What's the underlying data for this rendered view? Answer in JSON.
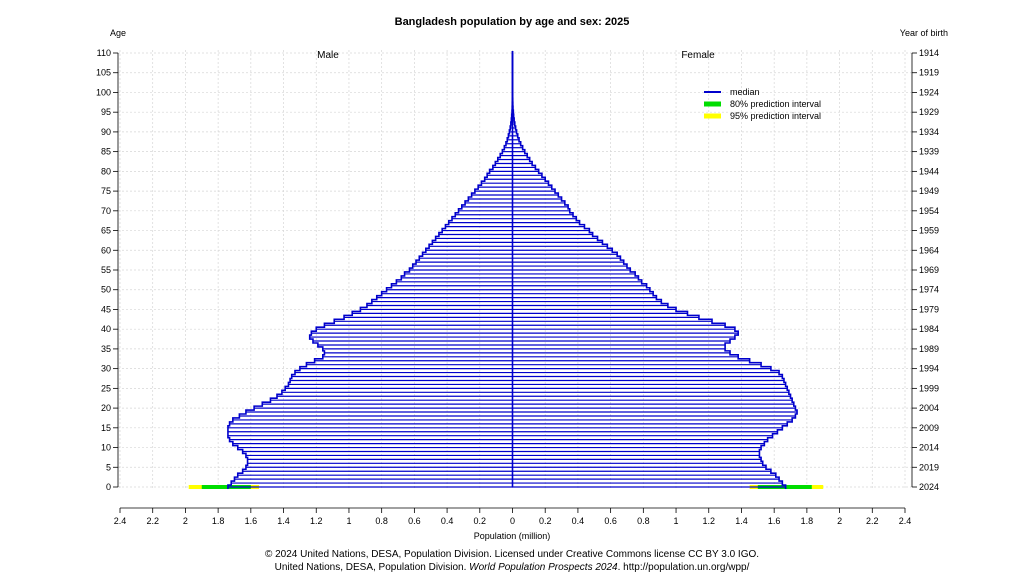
{
  "chart_data": {
    "type": "bar",
    "title": "Bangladesh population by age and sex: 2025",
    "left_axis_label": "Age",
    "right_axis_label": "Year of birth",
    "xlabel": "Population (million)",
    "male_label": "Male",
    "female_label": "Female",
    "x_tick_labels": [
      "2.4",
      "2.2",
      "2",
      "1.8",
      "1.6",
      "1.4",
      "1.2",
      "1",
      "0.8",
      "0.6",
      "0.4",
      "0.2",
      "0",
      "0.2",
      "0.4",
      "0.6",
      "0.8",
      "1",
      "1.2",
      "1.4",
      "1.6",
      "1.8",
      "2",
      "2.2",
      "2.4"
    ],
    "xlim": [
      -2.4,
      2.4
    ],
    "ylim": [
      0,
      110
    ],
    "age_ticks": [
      0,
      5,
      10,
      15,
      20,
      25,
      30,
      35,
      40,
      45,
      50,
      55,
      60,
      65,
      70,
      75,
      80,
      85,
      90,
      95,
      100,
      105,
      110
    ],
    "year_ticks": [
      "2024",
      "2019",
      "2014",
      "2009",
      "2004",
      "1999",
      "1994",
      "1989",
      "1984",
      "1979",
      "1974",
      "1969",
      "1964",
      "1959",
      "1954",
      "1949",
      "1944",
      "1939",
      "1934",
      "1929",
      "1924",
      "1919",
      "1914"
    ],
    "legend": {
      "placement": "top-right",
      "entries": [
        {
          "label": "median",
          "color": "#0000cc"
        },
        {
          "label": "80% prediction interval",
          "color": "#00dd00"
        },
        {
          "label": "95% prediction interval",
          "color": "#ffff00"
        }
      ]
    },
    "colors": {
      "median": "#0000cc",
      "pi80": "#00dd00",
      "pi95": "#ffff00",
      "grid": "#d6d6d6"
    },
    "grid": true,
    "age0_intervals": {
      "male": {
        "pi80": [
          1.6,
          1.9
        ],
        "pi95": [
          1.55,
          1.98
        ]
      },
      "female": {
        "pi80": [
          1.5,
          1.83
        ],
        "pi95": [
          1.45,
          1.9
        ]
      }
    },
    "series": [
      {
        "name": "Male",
        "values": [
          1.74,
          1.72,
          1.7,
          1.68,
          1.65,
          1.63,
          1.62,
          1.62,
          1.63,
          1.65,
          1.68,
          1.71,
          1.73,
          1.74,
          1.74,
          1.74,
          1.73,
          1.71,
          1.67,
          1.63,
          1.58,
          1.53,
          1.48,
          1.44,
          1.41,
          1.39,
          1.37,
          1.36,
          1.35,
          1.33,
          1.3,
          1.26,
          1.21,
          1.16,
          1.15,
          1.16,
          1.19,
          1.22,
          1.24,
          1.23,
          1.2,
          1.15,
          1.09,
          1.03,
          0.98,
          0.93,
          0.89,
          0.86,
          0.83,
          0.8,
          0.77,
          0.74,
          0.71,
          0.68,
          0.66,
          0.63,
          0.61,
          0.59,
          0.57,
          0.55,
          0.53,
          0.51,
          0.49,
          0.47,
          0.45,
          0.43,
          0.41,
          0.39,
          0.37,
          0.35,
          0.33,
          0.31,
          0.29,
          0.27,
          0.25,
          0.23,
          0.21,
          0.19,
          0.17,
          0.155,
          0.14,
          0.12,
          0.105,
          0.09,
          0.075,
          0.062,
          0.05,
          0.04,
          0.032,
          0.025,
          0.019,
          0.014,
          0.01,
          0.007,
          0.005,
          0.003,
          0.002,
          0.0015,
          0.001,
          0.0007,
          0.0005,
          0.0004,
          0.0003,
          0.0002,
          0.00015,
          0.0001,
          0.0001,
          0.0001,
          0.0001,
          0.0001,
          0.0001
        ]
      },
      {
        "name": "Female",
        "values": [
          1.67,
          1.65,
          1.63,
          1.61,
          1.58,
          1.55,
          1.53,
          1.52,
          1.51,
          1.51,
          1.52,
          1.54,
          1.56,
          1.59,
          1.62,
          1.65,
          1.68,
          1.71,
          1.73,
          1.74,
          1.73,
          1.72,
          1.71,
          1.7,
          1.69,
          1.68,
          1.67,
          1.66,
          1.65,
          1.63,
          1.58,
          1.52,
          1.45,
          1.38,
          1.33,
          1.3,
          1.3,
          1.33,
          1.36,
          1.38,
          1.36,
          1.3,
          1.22,
          1.14,
          1.07,
          1.0,
          0.95,
          0.91,
          0.88,
          0.86,
          0.84,
          0.82,
          0.79,
          0.77,
          0.75,
          0.72,
          0.7,
          0.68,
          0.66,
          0.64,
          0.61,
          0.58,
          0.55,
          0.52,
          0.49,
          0.47,
          0.44,
          0.41,
          0.39,
          0.37,
          0.35,
          0.34,
          0.32,
          0.3,
          0.28,
          0.26,
          0.24,
          0.22,
          0.2,
          0.18,
          0.16,
          0.14,
          0.12,
          0.105,
          0.09,
          0.075,
          0.062,
          0.05,
          0.04,
          0.032,
          0.025,
          0.019,
          0.014,
          0.01,
          0.007,
          0.005,
          0.003,
          0.002,
          0.0015,
          0.001,
          0.0007,
          0.0005,
          0.0004,
          0.0003,
          0.0002,
          0.00015,
          0.0001,
          0.0001,
          0.0001,
          0.0001,
          0.0001
        ]
      }
    ]
  },
  "footer": {
    "line1": "© 2024 United Nations, DESA, Population Division. Licensed under Creative Commons license CC BY 3.0 IGO.",
    "line2_prefix": "United Nations, DESA, Population Division. ",
    "line2_italic": "World Population Prospects 2024",
    "line2_suffix": ". http://population.un.org/wpp/"
  }
}
